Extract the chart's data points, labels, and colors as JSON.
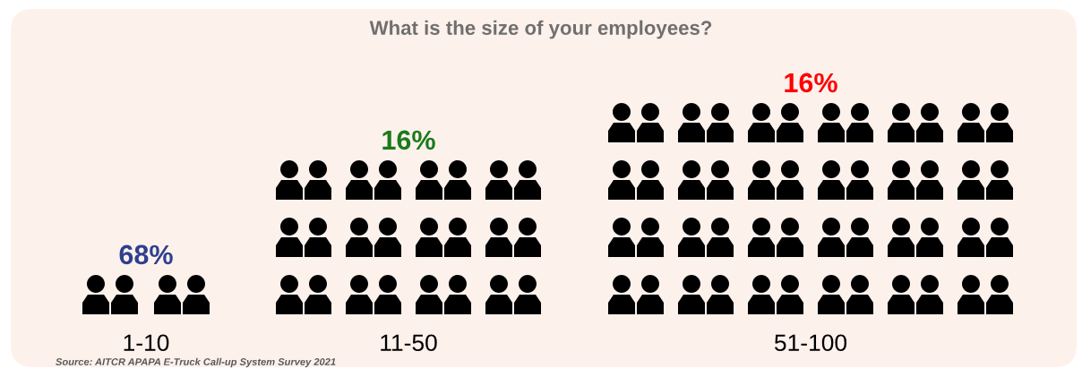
{
  "chart_data": {
    "type": "other",
    "title": "What is the size of your employees?",
    "categories": [
      "1-10",
      "11-50",
      "51-100"
    ],
    "values": [
      68,
      16,
      16
    ],
    "value_labels": [
      "68%",
      "16%",
      "16%"
    ],
    "colors": [
      "#2e3f8f",
      "#1a7a1a",
      "#ff0000"
    ],
    "annotations": [
      "Source: AITCR APAPA E-Truck Call-up System Survey 2021"
    ]
  }
}
